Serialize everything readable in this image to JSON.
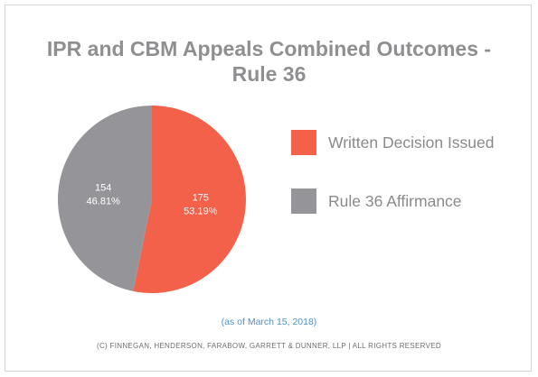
{
  "chart_data": {
    "type": "pie",
    "title_lines": [
      "IPR and CBM Appeals Combined Outcomes -",
      "Rule 36"
    ],
    "slices": [
      {
        "label": "Written Decision Issued",
        "value": 175,
        "percent": "53.19%",
        "color": "#f3614b"
      },
      {
        "label": "Rule 36 Affirmance",
        "value": 154,
        "percent": "46.81%",
        "color": "#959599"
      }
    ],
    "legend_position": "right"
  },
  "footer": {
    "note": "(as of March 15, 2018)",
    "copyright": "(C) FINNEGAN, HENDERSON, FARABOW, GARRETT & DUNNER, LLP | ALL RIGHTS RESERVED"
  },
  "colors": {
    "title": "#8f8f92",
    "note": "#4f92c9"
  }
}
